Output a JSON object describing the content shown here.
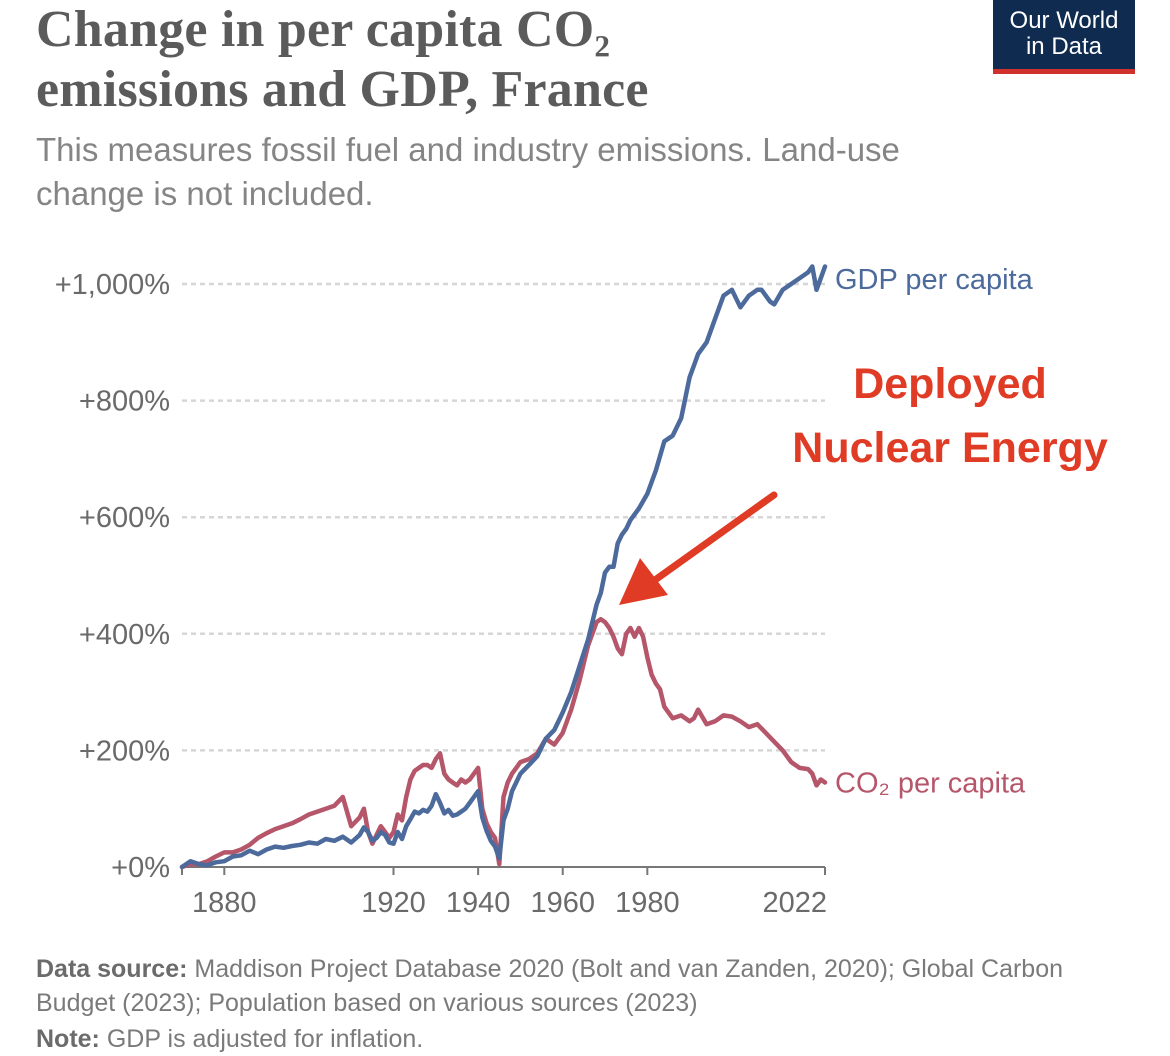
{
  "header": {
    "title_line1": "Change in per capita CO₂",
    "title_line2": "emissions and GDP, France",
    "subtitle": "This measures fossil fuel and industry emissions. Land-use change is not included."
  },
  "logo": {
    "line1": "Our World",
    "line2": "in Data",
    "bg_color": "#0f2b50",
    "accent_color": "#d0312d"
  },
  "footer": {
    "source_label": "Data source:",
    "source_text": "Maddison Project Database 2020 (Bolt and van Zanden, 2020); Global Carbon Budget (2023); Population based on various sources (2023)",
    "note_label": "Note:",
    "note_text": "GDP is adjusted for inflation."
  },
  "chart_data": {
    "type": "line",
    "title": "Change in per capita CO₂ emissions and GDP, France",
    "xlabel": "",
    "ylabel": "",
    "xlim": [
      1870,
      2022
    ],
    "ylim": [
      0,
      1000
    ],
    "y_ticks": [
      {
        "value": 0,
        "label": "+0%"
      },
      {
        "value": 200,
        "label": "+200%"
      },
      {
        "value": 400,
        "label": "+400%"
      },
      {
        "value": 600,
        "label": "+600%"
      },
      {
        "value": 800,
        "label": "+800%"
      },
      {
        "value": 1000,
        "label": "+1,000%"
      }
    ],
    "x_ticks": [
      {
        "value": 1880,
        "label": "1880"
      },
      {
        "value": 1920,
        "label": "1920"
      },
      {
        "value": 1940,
        "label": "1940"
      },
      {
        "value": 1960,
        "label": "1960"
      },
      {
        "value": 1980,
        "label": "1980"
      },
      {
        "value": 2022,
        "label": "2022"
      }
    ],
    "grid": true,
    "series": [
      {
        "name": "GDP per capita",
        "color": "#4c6a9c",
        "x": [
          1870,
          1872,
          1874,
          1876,
          1878,
          1880,
          1882,
          1884,
          1886,
          1888,
          1890,
          1892,
          1894,
          1896,
          1898,
          1900,
          1902,
          1904,
          1906,
          1908,
          1910,
          1912,
          1913,
          1914,
          1915,
          1916,
          1917,
          1918,
          1919,
          1920,
          1921,
          1922,
          1923,
          1924,
          1925,
          1926,
          1927,
          1928,
          1929,
          1930,
          1931,
          1932,
          1933,
          1934,
          1935,
          1936,
          1937,
          1938,
          1939,
          1940,
          1941,
          1942,
          1943,
          1944,
          1945,
          1946,
          1947,
          1948,
          1949,
          1950,
          1952,
          1954,
          1956,
          1958,
          1960,
          1962,
          1964,
          1966,
          1968,
          1969,
          1970,
          1971,
          1972,
          1973,
          1974,
          1975,
          1976,
          1978,
          1980,
          1982,
          1984,
          1986,
          1988,
          1990,
          1991,
          1992,
          1994,
          1996,
          1998,
          2000,
          2002,
          2004,
          2006,
          2007,
          2008,
          2009,
          2010,
          2012,
          2014,
          2016,
          2018,
          2019,
          2020,
          2021,
          2022
        ],
        "values": [
          0,
          10,
          5,
          3,
          8,
          10,
          18,
          20,
          28,
          22,
          30,
          35,
          33,
          36,
          38,
          42,
          40,
          48,
          45,
          52,
          42,
          55,
          68,
          60,
          45,
          50,
          60,
          55,
          42,
          40,
          60,
          48,
          70,
          82,
          95,
          92,
          98,
          95,
          105,
          125,
          110,
          92,
          98,
          88,
          90,
          95,
          100,
          110,
          120,
          130,
          85,
          62,
          45,
          35,
          15,
          80,
          100,
          130,
          145,
          160,
          175,
          190,
          220,
          235,
          265,
          300,
          345,
          390,
          450,
          470,
          505,
          515,
          515,
          555,
          570,
          580,
          595,
          615,
          640,
          680,
          730,
          740,
          770,
          840,
          860,
          880,
          900,
          940,
          980,
          990,
          960,
          980,
          990,
          990,
          980,
          970,
          965,
          990,
          1000,
          1010,
          1020,
          1030,
          990,
          1010,
          1030
        ]
      },
      {
        "name": "CO₂ per capita",
        "color": "#b5566a",
        "x": [
          1870,
          1872,
          1874,
          1876,
          1878,
          1880,
          1882,
          1884,
          1886,
          1888,
          1890,
          1892,
          1894,
          1896,
          1898,
          1900,
          1902,
          1904,
          1906,
          1908,
          1910,
          1912,
          1913,
          1914,
          1915,
          1916,
          1917,
          1918,
          1919,
          1920,
          1921,
          1922,
          1923,
          1924,
          1925,
          1926,
          1927,
          1928,
          1929,
          1930,
          1931,
          1932,
          1933,
          1934,
          1935,
          1936,
          1937,
          1938,
          1939,
          1940,
          1941,
          1942,
          1943,
          1944,
          1945,
          1946,
          1947,
          1948,
          1949,
          1950,
          1952,
          1954,
          1956,
          1958,
          1960,
          1962,
          1964,
          1966,
          1968,
          1969,
          1970,
          1971,
          1972,
          1973,
          1974,
          1975,
          1976,
          1977,
          1978,
          1979,
          1980,
          1981,
          1982,
          1983,
          1984,
          1985,
          1986,
          1988,
          1990,
          1991,
          1992,
          1994,
          1996,
          1998,
          2000,
          2002,
          2004,
          2006,
          2008,
          2010,
          2012,
          2014,
          2015,
          2016,
          2018,
          2019,
          2020,
          2021,
          2022
        ],
        "values": [
          0,
          5,
          5,
          10,
          18,
          25,
          25,
          30,
          38,
          50,
          58,
          65,
          70,
          75,
          82,
          90,
          95,
          100,
          105,
          120,
          70,
          85,
          100,
          60,
          40,
          55,
          70,
          60,
          50,
          60,
          90,
          80,
          120,
          150,
          165,
          170,
          175,
          175,
          170,
          185,
          195,
          160,
          150,
          145,
          140,
          150,
          145,
          150,
          160,
          170,
          100,
          75,
          60,
          50,
          5,
          120,
          145,
          160,
          170,
          180,
          185,
          195,
          220,
          210,
          230,
          270,
          320,
          380,
          420,
          425,
          420,
          410,
          395,
          375,
          365,
          400,
          410,
          395,
          410,
          395,
          360,
          330,
          315,
          305,
          275,
          265,
          255,
          260,
          250,
          255,
          270,
          245,
          250,
          260,
          258,
          250,
          240,
          245,
          230,
          215,
          200,
          180,
          175,
          170,
          168,
          160,
          140,
          150,
          145
        ]
      }
    ],
    "annotations": [
      {
        "text_line1": "Deployed",
        "text_line2": "Nuclear Energy",
        "color": "#e03b24",
        "points_to_year": 1973
      }
    ]
  }
}
